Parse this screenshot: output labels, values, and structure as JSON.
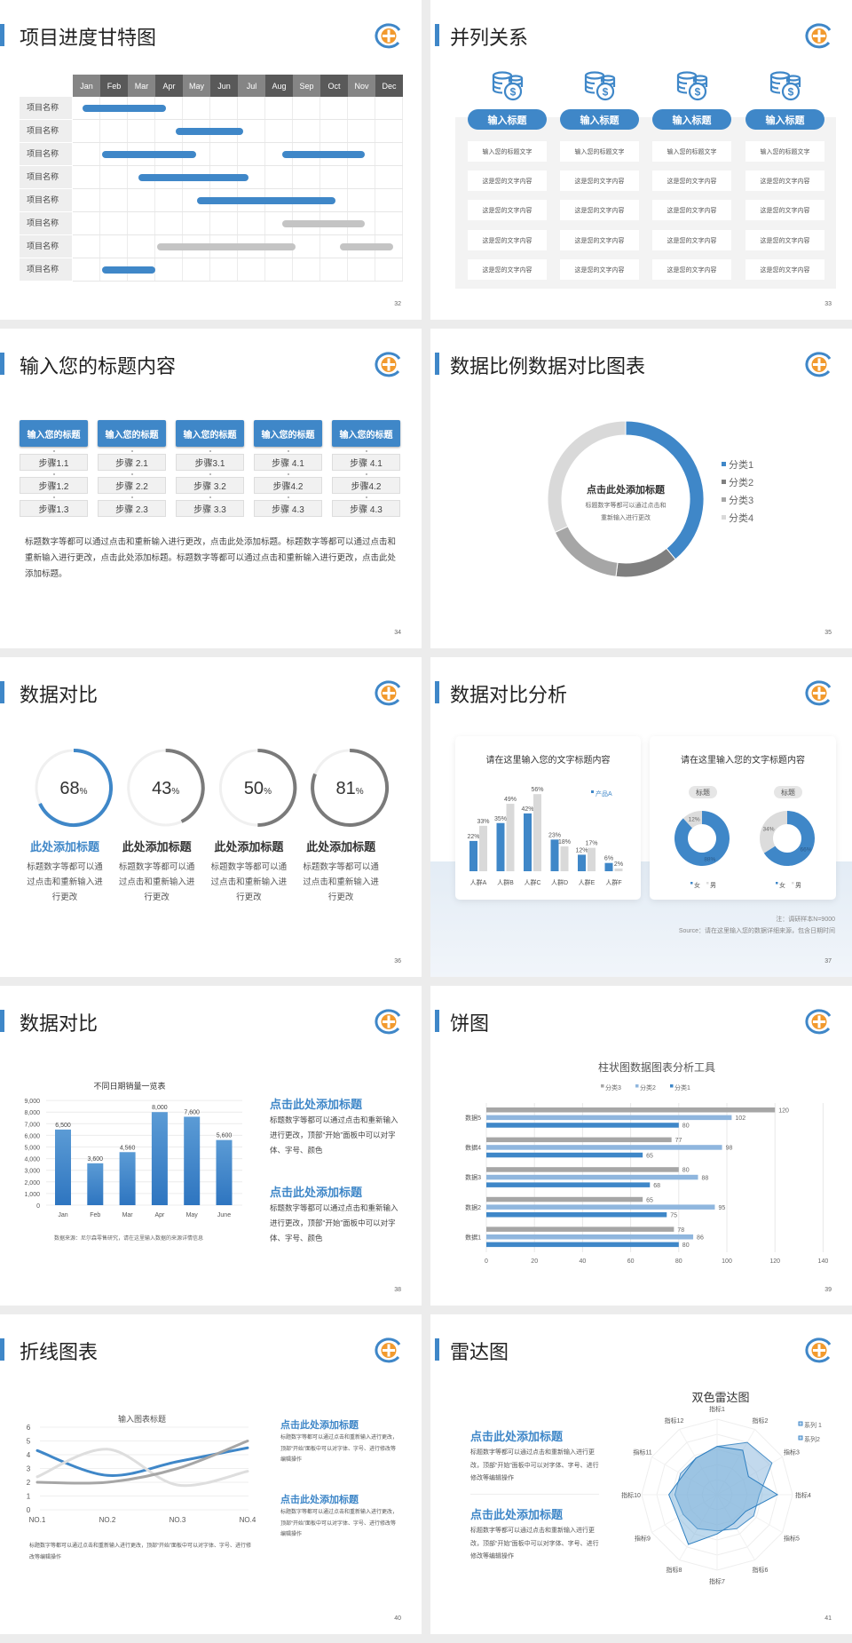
{
  "colors": {
    "blue": "#3f87c8",
    "blue_light": "#8fb6de",
    "gray": "#8c8c8c",
    "gray_mid": "#a6a6a6",
    "gray_light": "#d6d6d6",
    "logo_orange": "#f29a2e"
  },
  "gantt": {
    "page": "32",
    "title": "项目进度甘特图",
    "months": [
      "Jan",
      "Feb",
      "Mar",
      "Apr",
      "May",
      "Jun",
      "Jul",
      "Aug",
      "Sep",
      "Oct",
      "Nov",
      "Dec"
    ],
    "rows": [
      {
        "label": "项目名称",
        "bars": [
          {
            "start": 0.35,
            "end": 3.4,
            "status": "blue"
          }
        ]
      },
      {
        "label": "项目名称",
        "bars": [
          {
            "start": 3.75,
            "end": 6.2,
            "status": "blue"
          }
        ]
      },
      {
        "label": "项目名称",
        "bars": [
          {
            "start": 1.05,
            "end": 4.5,
            "status": "blue"
          },
          {
            "start": 7.6,
            "end": 10.6,
            "status": "blue"
          }
        ]
      },
      {
        "label": "项目名称",
        "bars": [
          {
            "start": 2.4,
            "end": 6.4,
            "status": "blue"
          }
        ]
      },
      {
        "label": "项目名称",
        "bars": [
          {
            "start": 4.5,
            "end": 9.55,
            "status": "blue"
          }
        ]
      },
      {
        "label": "项目名称",
        "bars": [
          {
            "start": 7.6,
            "end": 10.6,
            "status": "gray"
          }
        ]
      },
      {
        "label": "项目名称",
        "bars": [
          {
            "start": 3.05,
            "end": 8.1,
            "status": "gray"
          },
          {
            "start": 9.7,
            "end": 11.65,
            "status": "gray"
          }
        ]
      },
      {
        "label": "项目名称",
        "bars": [
          {
            "start": 1.05,
            "end": 3.0,
            "status": "blue"
          }
        ]
      }
    ]
  },
  "parallel": {
    "page": "33",
    "title": "并列关系",
    "columns": [
      {
        "icon": "coins-dollar-icon",
        "button": "输入标题",
        "items": [
          "输入您的标题文字",
          "这是您的文字内容",
          "这是您的文字内容",
          "这是您的文字内容",
          "这是您的文字内容"
        ]
      },
      {
        "icon": "coins-dollar-icon",
        "button": "输入标题",
        "items": [
          "输入您的标题文字",
          "这是您的文字内容",
          "这是您的文字内容",
          "这是您的文字内容",
          "这是您的文字内容"
        ]
      },
      {
        "icon": "coins-dollar-icon",
        "button": "输入标题",
        "items": [
          "输入您的标题文字",
          "这是您的文字内容",
          "这是您的文字内容",
          "这是您的文字内容",
          "这是您的文字内容"
        ]
      },
      {
        "icon": "coins-dollar-icon",
        "button": "输入标题",
        "items": [
          "输入您的标题文字",
          "这是您的文字内容",
          "这是您的文字内容",
          "这是您的文字内容",
          "这是您的文字内容"
        ]
      }
    ]
  },
  "steps": {
    "page": "34",
    "title": "输入您的标题内容",
    "columns": [
      {
        "header": "输入您的标题",
        "steps": [
          "步骤1.1",
          "步骤1.2",
          "步骤1.3"
        ]
      },
      {
        "header": "输入您的标题",
        "steps": [
          "步骤 2.1",
          "步骤 2.2",
          "步骤 2.3"
        ]
      },
      {
        "header": "输入您的标题",
        "steps": [
          "步骤3.1",
          "步骤 3.2",
          "步骤 3.3"
        ]
      },
      {
        "header": "输入您的标题",
        "steps": [
          "步骤 4.1",
          "步骤4.2",
          "步骤 4.3"
        ]
      },
      {
        "header": "输入您的标题",
        "steps": [
          "步骤 4.1",
          "步骤4.2",
          "步骤 4.3"
        ]
      }
    ],
    "paragraph": "标题数字等都可以通过点击和重新输入进行更改，点击此处添加标题。标题数字等都可以通过点击和重新输入进行更改，点击此处添加标题。标题数字等都可以通过点击和重新输入进行更改，点击此处添加标题。"
  },
  "donut": {
    "page": "35",
    "title": "数据比例数据对比图表",
    "center_title": "点击此处添加标题",
    "center_lines": [
      "标题数字等都可以通过点击和",
      "重新输入进行更改"
    ],
    "chart_data": {
      "type": "pie",
      "donut": true,
      "categories": [
        "分类1",
        "分类2",
        "分类3",
        "分类4"
      ],
      "values": [
        39,
        13,
        16,
        32
      ],
      "legend": "right"
    }
  },
  "rings": {
    "page": "36",
    "title": "数据对比",
    "items": [
      {
        "value": 68,
        "unit": "%",
        "heading": "此处添加标题",
        "text": "标题数字等都可以通过点击和重新输入进行更改",
        "accent": true
      },
      {
        "value": 43,
        "unit": "%",
        "heading": "此处添加标题",
        "text": "标题数字等都可以通过点击和重新输入进行更改",
        "accent": false
      },
      {
        "value": 50,
        "unit": "%",
        "heading": "此处添加标题",
        "text": "标题数字等都可以通过点击和重新输入进行更改",
        "accent": false
      },
      {
        "value": 81,
        "unit": "%",
        "heading": "此处添加标题",
        "text": "标题数字等都可以通过点击和重新输入进行更改",
        "accent": false
      }
    ]
  },
  "analysis": {
    "page": "37",
    "title": "数据对比分析",
    "bar_card": {
      "title": "请在这里输入您的文字标题内容",
      "chart_data": {
        "type": "bar",
        "categories": [
          "人群A",
          "人群B",
          "人群C",
          "人群D",
          "人群E",
          "人群F"
        ],
        "series": [
          {
            "name": "产品A",
            "values": [
              22,
              35,
              42,
              23,
              12,
              6
            ]
          },
          {
            "values": [
              33,
              49,
              56,
              18,
              17,
              2
            ]
          }
        ],
        "value_suffix": "%",
        "legend": "top-right"
      }
    },
    "donut_card": {
      "title": "请在这里输入您的文字标题内容",
      "legend": [
        "女",
        "男"
      ],
      "donuts": [
        {
          "badge": "标题",
          "chart_data": {
            "type": "pie",
            "donut": true,
            "categories": [
              "女",
              "男"
            ],
            "values": [
              88,
              12
            ]
          }
        },
        {
          "badge": "标题",
          "chart_data": {
            "type": "pie",
            "donut": true,
            "categories": [
              "女",
              "男"
            ],
            "values": [
              66,
              34
            ]
          }
        }
      ]
    },
    "note": "注：调研样本N=9000",
    "source": "Source：请在这里输入您的数据详细来源，包含日期时间"
  },
  "column": {
    "page": "38",
    "title": "数据对比",
    "chart_data": {
      "type": "bar",
      "title": "不同日期销量一览表",
      "categories": [
        "Jan",
        "Feb",
        "Mar",
        "Apr",
        "May",
        "June"
      ],
      "values": [
        6500,
        3600,
        4560,
        8000,
        7600,
        5600
      ],
      "value_labels": [
        "6,500",
        "3,600",
        "4,560",
        "8,000",
        "7,600",
        "5,600"
      ],
      "ylim": [
        0,
        9000
      ],
      "yticks": [
        "0",
        "1,000",
        "2,000",
        "3,000",
        "4,000",
        "5,000",
        "6,000",
        "7,000",
        "8,000",
        "9,000"
      ],
      "grid": true
    },
    "footnote": "数据来源：尼尔森零售研究，请在这里输入数据的来源详情信息",
    "blocks": [
      {
        "heading": "点击此处添加标题",
        "body": "标题数字等都可以通过点击和重新输入进行更改，顶部“开始”面板中可以对字体、字号、颜色"
      },
      {
        "heading": "点击此处添加标题",
        "body": "标题数字等都可以通过点击和重新输入进行更改，顶部“开始”面板中可以对字体、字号、颜色"
      }
    ]
  },
  "hbar": {
    "page": "39",
    "title": "饼图",
    "chart_data": {
      "type": "bar",
      "orientation": "horizontal",
      "title": "柱状图数据图表分析工具",
      "categories": [
        "数据1",
        "数据2",
        "数据3",
        "数据4",
        "数据5"
      ],
      "series": [
        {
          "name": "分类1",
          "values": [
            80,
            75,
            68,
            65,
            80
          ]
        },
        {
          "name": "分类2",
          "values": [
            86,
            95,
            88,
            98,
            102
          ]
        },
        {
          "name": "分类3",
          "values": [
            78,
            65,
            80,
            77,
            120
          ]
        }
      ],
      "legend_order": [
        "分类3",
        "分类2",
        "分类1"
      ],
      "legend": "top",
      "xlim": [
        0,
        140
      ],
      "xticks": [
        "0",
        "20",
        "40",
        "60",
        "80",
        "100",
        "120",
        "140"
      ],
      "grid": true
    }
  },
  "line": {
    "page": "40",
    "title": "折线图表",
    "chart_data": {
      "type": "line",
      "smooth": true,
      "title": "输入图表标题",
      "categories": [
        "NO.1",
        "NO.2",
        "NO.3",
        "NO.4"
      ],
      "series": [
        {
          "values": [
            4.3,
            2.5,
            3.5,
            4.5
          ]
        },
        {
          "values": [
            2.4,
            4.4,
            1.8,
            2.8
          ]
        },
        {
          "values": [
            2.0,
            2.0,
            3.0,
            5.0
          ]
        }
      ],
      "ylim": [
        0,
        6
      ],
      "yticks": [
        "0",
        "1",
        "2",
        "3",
        "4",
        "5",
        "6"
      ],
      "grid": true
    },
    "paragraph": "标题数字等都可以通过点击和重新输入进行更改，顶部“开始”面板中可以对字体、字号、进行修改等编辑操作",
    "blocks": [
      {
        "heading": "点击此处添加标题",
        "body": "标题数字等都可以通过点击和重新输入进行更改，顶部“开始”面板中可以对字体、字号、进行修改等编辑操作"
      },
      {
        "heading": "点击此处添加标题",
        "body": "标题数字等都可以通过点击和重新输入进行更改，顶部“开始”面板中可以对字体、字号、进行修改等编辑操作"
      }
    ]
  },
  "radar": {
    "page": "41",
    "title": "雷达图",
    "chart_data": {
      "type": "radar",
      "title": "双色雷达图",
      "axes": [
        "指标1",
        "指标2",
        "指标3",
        "指标4",
        "指标5",
        "指标6",
        "指标7",
        "指标8",
        "指标9",
        "指标10",
        "指标11",
        "指标12"
      ],
      "series": [
        {
          "name": "系列 1",
          "values": [
            3.2,
            4.0,
            4.2,
            2.8,
            2.8,
            2.6,
            2.4,
            2.6,
            2.6,
            2.8,
            2.8,
            2.8
          ]
        },
        {
          "name": "系列2",
          "values": [
            3.2,
            3.4,
            2.4,
            4.0,
            2.2,
            2.2,
            2.6,
            3.8,
            3.0,
            3.2,
            2.6,
            2.8
          ]
        }
      ],
      "rmax": 5,
      "legend": "top-right"
    },
    "blocks": [
      {
        "heading": "点击此处添加标题",
        "body": "标题数字等都可以通过点击和重新输入进行更改，顶部“开始”面板中可以对字体、字号、进行修改等编辑操作"
      },
      {
        "heading": "点击此处添加标题",
        "body": "标题数字等都可以通过点击和重新输入进行更改，顶部“开始”面板中可以对字体、字号、进行修改等编辑操作"
      }
    ]
  }
}
